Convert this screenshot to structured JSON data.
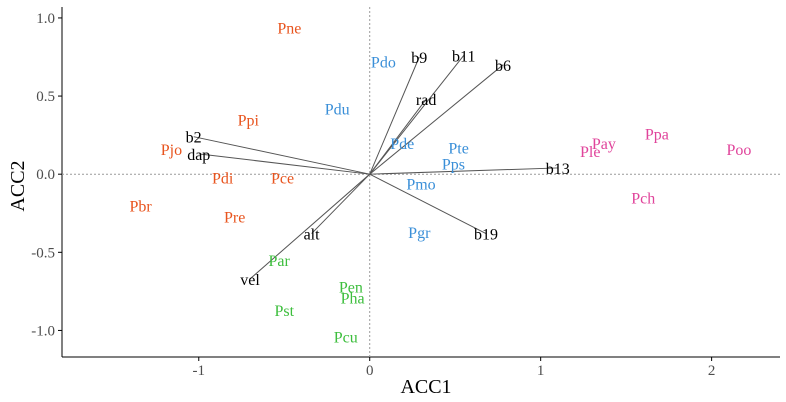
{
  "chart_data": {
    "type": "scatter",
    "title": "",
    "xlabel": "ACC1",
    "ylabel": "ACC2",
    "xlim": [
      -1.8,
      2.4
    ],
    "ylim": [
      -1.17,
      1.07
    ],
    "xticks": [
      -1,
      0,
      1,
      2
    ],
    "yticks": [
      -1.0,
      -0.5,
      0.0,
      0.5,
      1.0
    ],
    "xtick_labels": [
      "-1",
      "0",
      "1",
      "2"
    ],
    "ytick_labels": [
      "-1.0",
      "-0.5",
      "0.0",
      "0.5",
      "1.0"
    ],
    "reference_lines": {
      "x": 0,
      "y": 0,
      "style": "dotted"
    },
    "grid": false,
    "legend": "none",
    "colors": {
      "orange": "#E8541E",
      "blue": "#3A8FD8",
      "green": "#3DBE3D",
      "magenta": "#E0449B",
      "vector": "#555555"
    },
    "points": [
      {
        "label": "Pne",
        "x": -0.47,
        "y": 0.94,
        "group": "orange"
      },
      {
        "label": "Ppi",
        "x": -0.71,
        "y": 0.35,
        "group": "orange"
      },
      {
        "label": "Pjo",
        "x": -1.16,
        "y": 0.16,
        "group": "orange"
      },
      {
        "label": "Pdi",
        "x": -0.86,
        "y": -0.02,
        "group": "orange"
      },
      {
        "label": "Pce",
        "x": -0.51,
        "y": -0.02,
        "group": "orange"
      },
      {
        "label": "Pbr",
        "x": -1.34,
        "y": -0.2,
        "group": "orange"
      },
      {
        "label": "Pre",
        "x": -0.79,
        "y": -0.27,
        "group": "orange"
      },
      {
        "label": "Pdo",
        "x": 0.08,
        "y": 0.72,
        "group": "blue"
      },
      {
        "label": "Pdu",
        "x": -0.19,
        "y": 0.42,
        "group": "blue"
      },
      {
        "label": "Pde",
        "x": 0.19,
        "y": 0.2,
        "group": "blue"
      },
      {
        "label": "Pte",
        "x": 0.52,
        "y": 0.17,
        "group": "blue"
      },
      {
        "label": "Pps",
        "x": 0.49,
        "y": 0.07,
        "group": "blue"
      },
      {
        "label": "Pmo",
        "x": 0.3,
        "y": -0.06,
        "group": "blue"
      },
      {
        "label": "Pgr",
        "x": 0.29,
        "y": -0.37,
        "group": "blue"
      },
      {
        "label": "Par",
        "x": -0.53,
        "y": -0.55,
        "group": "green"
      },
      {
        "label": "Pen",
        "x": -0.11,
        "y": -0.72,
        "group": "green"
      },
      {
        "label": "Pha",
        "x": -0.1,
        "y": -0.79,
        "group": "green"
      },
      {
        "label": "Pst",
        "x": -0.5,
        "y": -0.87,
        "group": "green"
      },
      {
        "label": "Pcu",
        "x": -0.14,
        "y": -1.04,
        "group": "green"
      },
      {
        "label": "Pay",
        "x": 1.37,
        "y": 0.2,
        "group": "magenta"
      },
      {
        "label": "Ple",
        "x": 1.29,
        "y": 0.15,
        "group": "magenta"
      },
      {
        "label": "Ppa",
        "x": 1.68,
        "y": 0.26,
        "group": "magenta"
      },
      {
        "label": "Poo",
        "x": 2.16,
        "y": 0.16,
        "group": "magenta"
      },
      {
        "label": "Pch",
        "x": 1.6,
        "y": -0.15,
        "group": "magenta"
      }
    ],
    "vectors": [
      {
        "label": "b9",
        "x": 0.29,
        "y": 0.75
      },
      {
        "label": "b11",
        "x": 0.55,
        "y": 0.76
      },
      {
        "label": "b6",
        "x": 0.78,
        "y": 0.7
      },
      {
        "label": "rad",
        "x": 0.33,
        "y": 0.48
      },
      {
        "label": "b2",
        "x": -1.03,
        "y": 0.24
      },
      {
        "label": "dap",
        "x": -1.0,
        "y": 0.13
      },
      {
        "label": "b13",
        "x": 1.1,
        "y": 0.04
      },
      {
        "label": "b19",
        "x": 0.68,
        "y": -0.38
      },
      {
        "label": "alt",
        "x": -0.34,
        "y": -0.38
      },
      {
        "label": "vel",
        "x": -0.7,
        "y": -0.67
      }
    ]
  }
}
